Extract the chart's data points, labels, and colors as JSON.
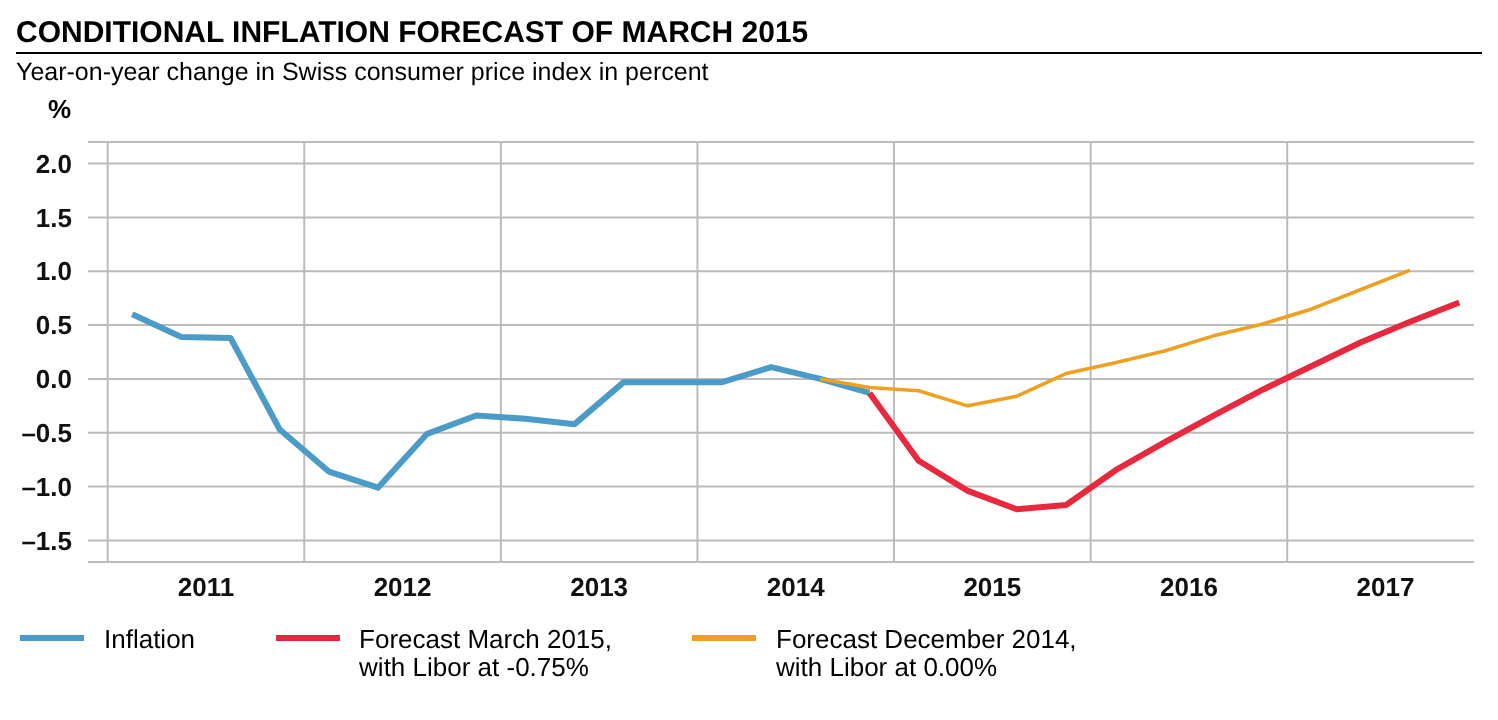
{
  "chart_data": {
    "type": "line",
    "title": "CONDITIONAL INFLATION FORECAST OF MARCH 2015",
    "subtitle": "Year-on-year change in Swiss consumer price index in percent",
    "ylabel": "%",
    "xlim": [
      2010.9,
      2017.95
    ],
    "xticks": [
      {
        "value": 2011,
        "label": null
      },
      {
        "value": 2011.5,
        "label": "2011"
      },
      {
        "value": 2012,
        "label": null
      },
      {
        "value": 2012.5,
        "label": "2012"
      },
      {
        "value": 2013,
        "label": null
      },
      {
        "value": 2013.5,
        "label": "2013"
      },
      {
        "value": 2014,
        "label": null
      },
      {
        "value": 2014.5,
        "label": "2014"
      },
      {
        "value": 2015,
        "label": null
      },
      {
        "value": 2015.5,
        "label": "2015"
      },
      {
        "value": 2016,
        "label": null
      },
      {
        "value": 2016.5,
        "label": "2016"
      },
      {
        "value": 2017,
        "label": null
      },
      {
        "value": 2017.5,
        "label": "2017"
      }
    ],
    "ylim": [
      -1.7,
      2.2
    ],
    "yticks": [
      {
        "value": -1.5,
        "label": "–1.5"
      },
      {
        "value": -1,
        "label": "–1.0"
      },
      {
        "value": -0.5,
        "label": "–0.5"
      },
      {
        "value": 0,
        "label": "0.0"
      },
      {
        "value": 0.5,
        "label": "0.5"
      },
      {
        "value": 1,
        "label": "1.0"
      },
      {
        "value": 1.5,
        "label": "1.5"
      },
      {
        "value": 2,
        "label": "2.0"
      }
    ],
    "grid": true,
    "legend": "bottom",
    "marker": "none",
    "line_style": "solid",
    "series": [
      {
        "name": "Inflation",
        "color": "#4a9bc8",
        "x": [
          2011.125,
          2011.375,
          2011.625,
          2011.875,
          2012.125,
          2012.375,
          2012.625,
          2012.875,
          2013.125,
          2013.375,
          2013.625,
          2013.875,
          2014.125,
          2014.375,
          2014.625,
          2014.875
        ],
        "values": [
          0.6,
          0.39,
          0.38,
          -0.47,
          -0.86,
          -1.01,
          -0.51,
          -0.34,
          -0.37,
          -0.42,
          -0.03,
          -0.03,
          -0.03,
          0.11,
          0.0,
          -0.13
        ]
      },
      {
        "name": "Forecast March 2015,\nwith Libor at -0.75%",
        "color": "#e8283c",
        "x": [
          2014.875,
          2015.125,
          2015.375,
          2015.625,
          2015.875,
          2016.125,
          2016.375,
          2016.625,
          2016.875,
          2017.125,
          2017.375,
          2017.625,
          2017.875
        ],
        "values": [
          -0.13,
          -0.76,
          -1.04,
          -1.21,
          -1.17,
          -0.85,
          -0.59,
          -0.34,
          -0.1,
          0.12,
          0.34,
          0.53,
          0.71
        ]
      },
      {
        "name": "Forecast December 2014,\nwith Libor at 0.00%",
        "color": "#f0a020",
        "x": [
          2014.625,
          2014.875,
          2015.125,
          2015.375,
          2015.625,
          2015.875,
          2016.125,
          2016.375,
          2016.625,
          2016.875,
          2017.125,
          2017.375,
          2017.625
        ],
        "values": [
          0.0,
          -0.08,
          -0.11,
          -0.25,
          -0.16,
          0.05,
          0.15,
          0.26,
          0.4,
          0.51,
          0.65,
          0.83,
          1.01
        ]
      }
    ]
  }
}
